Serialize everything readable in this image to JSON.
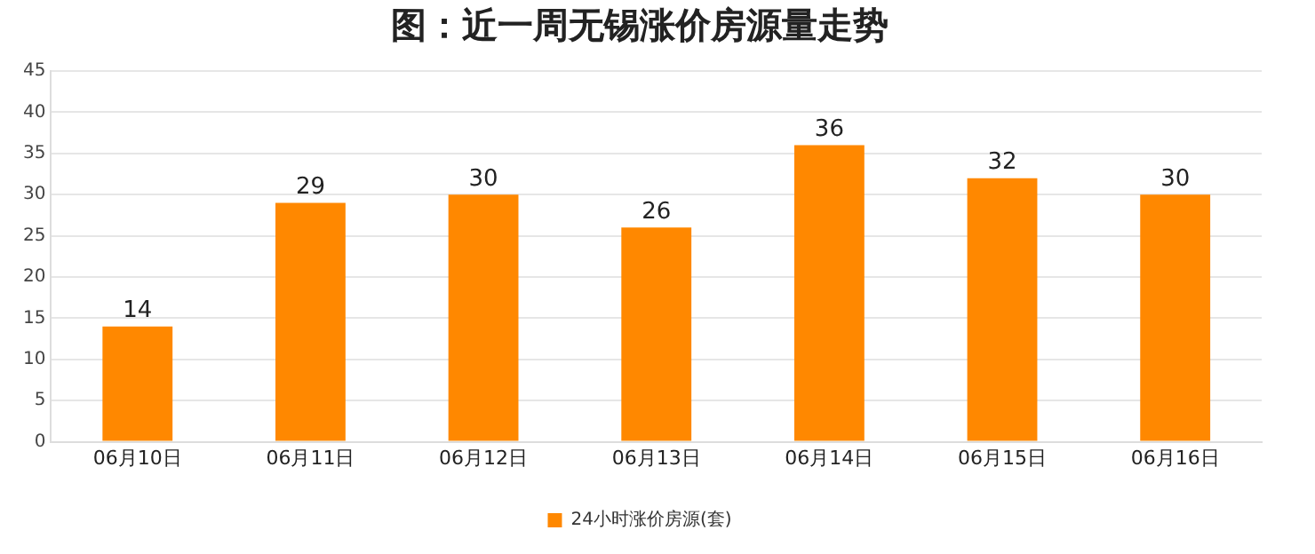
{
  "chart_data": {
    "type": "bar",
    "title": "图：近一周无锡涨价房源量走势",
    "categories": [
      "06月10日",
      "06月11日",
      "06月12日",
      "06月13日",
      "06月14日",
      "06月15日",
      "06月16日"
    ],
    "series": [
      {
        "name": "24小时涨价房源(套)",
        "color": "#ff8800",
        "values": [
          14,
          29,
          30,
          26,
          36,
          32,
          30
        ]
      }
    ],
    "ylim": [
      0,
      45
    ],
    "yticks": [
      0,
      5,
      10,
      15,
      20,
      25,
      30,
      35,
      40,
      45
    ],
    "grid": "y",
    "legend": "bottom",
    "data_labels": true
  }
}
